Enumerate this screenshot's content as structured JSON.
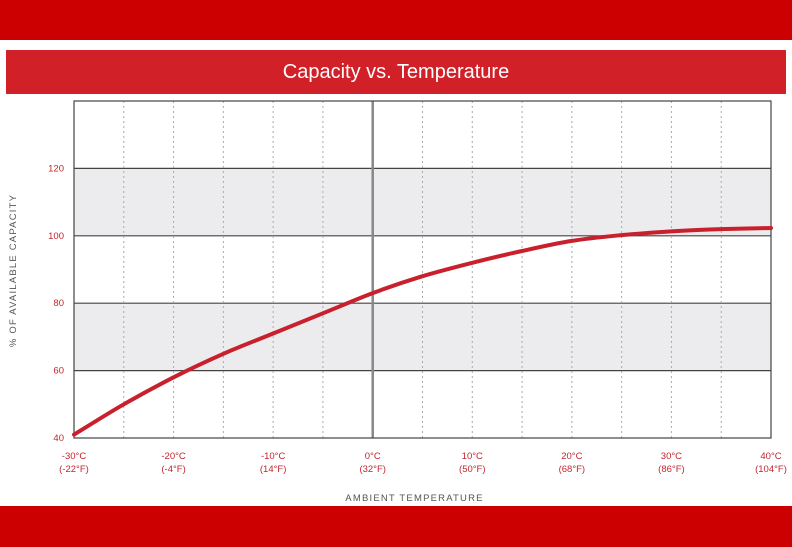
{
  "colors": {
    "brand_red": "#cc0000",
    "title_bar": "#d12028",
    "curve": "#c8202c",
    "band_fill": "#ececef",
    "grid": "#444444",
    "tick_text": "#c0262e",
    "axis_text": "#555555"
  },
  "chart_data": {
    "type": "line",
    "title": "Capacity vs. Temperature",
    "xlabel": "AMBIENT TEMPERATURE",
    "ylabel": "% OF AVAILABLE CAPACITY",
    "xlim": [
      -30,
      40
    ],
    "ylim": [
      40,
      140
    ],
    "x_ticks": [
      {
        "value": -30,
        "c": "-30°C",
        "f": "(-22°F)"
      },
      {
        "value": -20,
        "c": "-20°C",
        "f": "(-4°F)"
      },
      {
        "value": -10,
        "c": "-10°C",
        "f": "(14°F)"
      },
      {
        "value": 0,
        "c": "0°C",
        "f": "(32°F)"
      },
      {
        "value": 10,
        "c": "10°C",
        "f": "(50°F)"
      },
      {
        "value": 20,
        "c": "20°C",
        "f": "(68°F)"
      },
      {
        "value": 30,
        "c": "30°C",
        "f": "(86°F)"
      },
      {
        "value": 40,
        "c": "40°C",
        "f": "(104°F)"
      }
    ],
    "y_ticks": [
      40,
      60,
      80,
      100,
      120
    ],
    "shaded_bands": [
      [
        60,
        80
      ],
      [
        100,
        120
      ]
    ],
    "grid": true,
    "series": [
      {
        "x": [
          -30,
          -25,
          -20,
          -15,
          -10,
          -5,
          0,
          5,
          10,
          15,
          20,
          25,
          30,
          35,
          40
        ],
        "y": [
          41,
          50,
          58,
          65,
          71,
          77,
          83,
          88,
          92,
          95.5,
          98.5,
          100.2,
          101.3,
          102,
          102.3
        ]
      }
    ]
  }
}
